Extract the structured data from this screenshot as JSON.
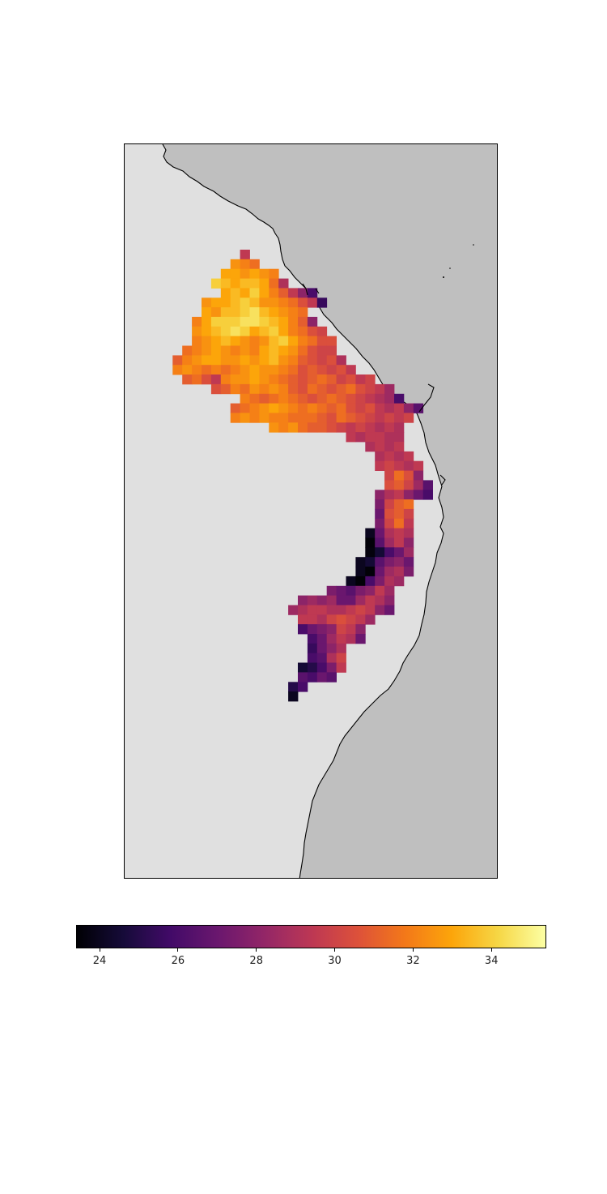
{
  "map": {
    "ocean_color": "#bfbfbf",
    "land_color": "#e0e0e0",
    "coastline_color": "#000000",
    "colormap": "inferno",
    "value_range": [
      23.4,
      35.4
    ]
  },
  "colorbar": {
    "orientation": "horizontal",
    "min": 23.4,
    "max": 35.4,
    "ticks": [
      "24",
      "26",
      "28",
      "30",
      "32",
      "34"
    ]
  },
  "grid": {
    "rows": [
      {
        "r": 0,
        "c0": 12,
        "v": [
          29.5
        ]
      },
      {
        "r": 1,
        "c0": 11,
        "v": [
          32.5,
          32,
          31.5
        ]
      },
      {
        "r": 2,
        "c0": 10,
        "v": [
          33,
          33,
          32.5,
          33,
          32.5,
          32
        ]
      },
      {
        "r": 3,
        "c0": 9,
        "v": [
          34,
          33.5,
          33,
          33.5,
          33.5,
          33,
          31.5,
          29
        ]
      },
      {
        "r": 4,
        "c0": 10,
        "v": [
          33,
          33.5,
          33,
          34,
          33,
          32,
          31,
          29.5,
          28,
          26
        ]
      },
      {
        "r": 5,
        "c0": 8,
        "v": [
          32.5,
          33,
          33,
          33.5,
          34,
          33.5,
          32.5,
          32.5,
          32,
          31.5,
          30.5,
          29.5,
          25.5
        ]
      },
      {
        "r": 6,
        "c0": 8,
        "v": [
          33,
          32.5,
          33.5,
          33.5,
          34,
          34.5,
          33.5,
          33,
          32.5,
          32,
          31.5
        ]
      },
      {
        "r": 7,
        "c0": 7,
        "v": [
          32,
          33,
          34,
          34,
          34,
          34.5,
          34.5,
          34,
          33.5,
          33,
          32,
          31,
          28
        ]
      },
      {
        "r": 8,
        "c0": 7,
        "v": [
          32.5,
          33,
          33.5,
          34,
          34.5,
          34,
          33,
          33.5,
          34,
          33,
          32,
          31.5,
          30.5,
          30
        ]
      },
      {
        "r": 9,
        "c0": 7,
        "v": [
          32,
          32.5,
          33,
          33.5,
          33,
          32.5,
          32,
          32.5,
          33.5,
          34,
          33,
          32,
          31.5,
          30.5,
          30.5
        ]
      },
      {
        "r": 10,
        "c0": 6,
        "v": [
          31.5,
          32,
          32.5,
          33,
          32.5,
          32,
          32.5,
          32,
          33,
          33.5,
          33,
          32.5,
          31.5,
          30.5,
          30,
          30
        ]
      },
      {
        "r": 11,
        "c0": 5,
        "v": [
          31,
          32,
          32.5,
          33,
          33,
          32.5,
          32.5,
          33,
          32.5,
          33,
          33.5,
          32.5,
          32,
          31,
          30.5,
          30,
          30.5,
          29
        ]
      },
      {
        "r": 12,
        "c0": 5,
        "v": [
          32,
          32.5,
          32,
          31.5,
          32,
          31.5,
          32,
          32.5,
          33,
          32.5,
          32.5,
          32,
          31.5,
          30.5,
          31,
          30.5,
          30,
          30.5,
          29.5
        ]
      },
      {
        "r": 13,
        "c0": 6,
        "v": [
          31,
          31.5,
          30.5,
          29.5,
          32,
          32.5,
          32.5,
          33,
          32.5,
          32,
          31.5,
          31,
          30.5,
          31,
          31.5,
          31,
          30,
          30.5,
          29.5,
          30
        ]
      },
      {
        "r": 14,
        "c0": 9,
        "v": [
          30.5,
          31,
          32,
          31.5,
          32.5,
          32,
          32.5,
          32,
          31,
          30.5,
          31.5,
          31,
          30.5,
          31,
          31.5,
          30.5,
          30,
          29.5,
          28.5
        ]
      },
      {
        "r": 15,
        "c0": 12,
        "v": [
          32,
          31.5,
          31,
          31.5,
          32,
          31.5,
          31,
          30.5,
          31,
          31.5,
          31,
          30.5,
          30,
          29.5,
          29,
          28.5,
          26
        ]
      },
      {
        "r": 16,
        "c0": 11,
        "v": [
          31,
          31.5,
          32,
          32.5,
          33,
          32.5,
          32,
          31.5,
          32,
          31.5,
          31,
          31.5,
          30.5,
          30,
          30.5,
          29.5,
          29,
          29.5,
          28,
          26.5
        ]
      },
      {
        "r": 17,
        "c0": 11,
        "v": [
          32,
          32.5,
          32,
          32.5,
          32,
          32,
          31.5,
          31.5,
          31.5,
          31,
          30.5,
          31.5,
          31,
          30.5,
          30,
          29.5,
          30,
          29.5,
          30
        ]
      },
      {
        "r": 18,
        "c0": 15,
        "v": [
          32.5,
          32,
          32.5,
          31.5,
          31,
          31,
          30.5,
          30,
          29.5,
          30,
          29.5,
          29,
          29.5,
          29
        ]
      },
      {
        "r": 19,
        "c0": 23,
        "v": [
          29.5,
          29,
          29.5,
          29.5,
          29,
          29
        ]
      },
      {
        "r": 20,
        "c0": 25,
        "v": [
          29,
          29.5,
          29,
          29.5
        ]
      },
      {
        "r": 21,
        "c0": 26,
        "v": [
          29,
          29.5,
          29,
          29.5
        ]
      },
      {
        "r": 22,
        "c0": 26,
        "v": [
          29.5,
          30,
          29.5,
          29,
          29.5
        ]
      },
      {
        "r": 23,
        "c0": 27,
        "v": [
          30,
          31.5,
          30.5,
          28
        ]
      },
      {
        "r": 24,
        "c0": 27,
        "v": [
          30.5,
          31,
          30,
          28.5,
          26.5
        ]
      },
      {
        "r": 25,
        "c0": 26,
        "v": [
          28,
          29,
          29.5,
          28,
          27,
          26
        ]
      },
      {
        "r": 26,
        "c0": 26,
        "v": [
          27.5,
          30,
          31,
          31.5
        ]
      },
      {
        "r": 27,
        "c0": 26,
        "v": [
          27,
          30.5,
          31,
          30
        ]
      },
      {
        "r": 28,
        "c0": 26,
        "v": [
          27.5,
          30,
          31.5,
          29.5
        ]
      },
      {
        "r": 29,
        "c0": 25,
        "v": [
          24,
          27,
          29,
          29.5,
          29
        ]
      },
      {
        "r": 30,
        "c0": 25,
        "v": [
          23.5,
          26.5,
          28.5,
          29.5,
          28
        ]
      },
      {
        "r": 31,
        "c0": 25,
        "v": [
          23.6,
          24.5,
          26,
          27,
          28.5
        ]
      },
      {
        "r": 32,
        "c0": 24,
        "v": [
          24,
          24.5,
          26.5,
          27.5,
          28,
          27
        ]
      },
      {
        "r": 33,
        "c0": 24,
        "v": [
          24,
          23.5,
          27,
          28.5,
          29,
          27.5
        ]
      },
      {
        "r": 34,
        "c0": 23,
        "v": [
          24,
          23.5,
          26,
          27.5,
          29,
          28.5
        ]
      },
      {
        "r": 35,
        "c0": 21,
        "v": [
          27.5,
          27,
          26.5,
          27.5,
          28,
          29.5,
          28.5
        ]
      },
      {
        "r": 36,
        "c0": 18,
        "v": [
          28,
          28.5,
          28,
          28.5,
          27,
          27,
          28.5,
          29.5,
          29,
          28
        ]
      },
      {
        "r": 37,
        "c0": 17,
        "v": [
          28.5,
          29,
          29.5,
          29.5,
          29,
          29,
          29.5,
          30,
          29.5,
          28,
          27
        ]
      },
      {
        "r": 38,
        "c0": 18,
        "v": [
          29.5,
          29.5,
          29,
          30,
          30.5,
          30,
          29.5,
          28.5
        ]
      },
      {
        "r": 39,
        "c0": 18,
        "v": [
          26,
          27,
          27.5,
          28,
          30,
          29.5,
          28
        ]
      },
      {
        "r": 40,
        "c0": 19,
        "v": [
          26,
          27,
          28.5,
          29.5,
          29,
          27
        ]
      },
      {
        "r": 41,
        "c0": 19,
        "v": [
          25.5,
          27,
          28,
          29
        ]
      },
      {
        "r": 42,
        "c0": 19,
        "v": [
          26,
          26.5,
          29,
          30
        ]
      },
      {
        "r": 43,
        "c0": 18,
        "v": [
          24.5,
          25,
          26,
          27.5,
          29.5
        ]
      },
      {
        "r": 44,
        "c0": 18,
        "v": [
          26.5,
          26,
          27,
          26.5
        ]
      },
      {
        "r": 45,
        "c0": 17,
        "v": [
          25,
          26
        ]
      },
      {
        "r": 46,
        "c0": 17,
        "v": [
          24
        ]
      }
    ]
  }
}
